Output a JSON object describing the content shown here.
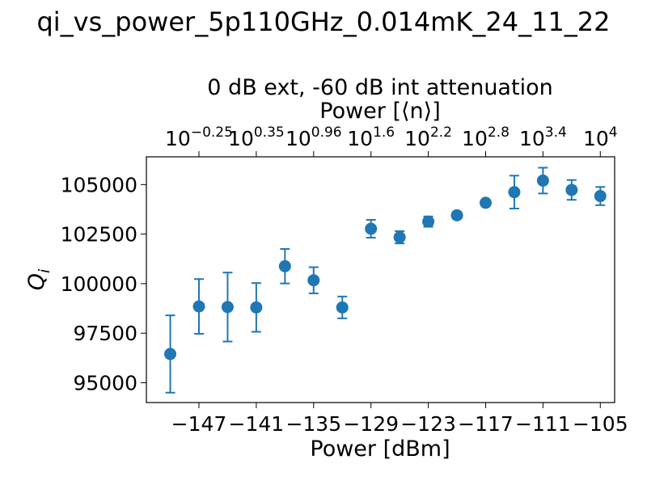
{
  "chart_data": {
    "type": "scatter",
    "title": "qi_vs_power_5p110GHz_0.014mK_24_11_22",
    "secondary_title": "0 dB ext, -60 dB int attenuation",
    "xlabel": "Power [dBm]",
    "ylabel": "Q_i",
    "top_xlabel": "Power [⟨n⟩]",
    "xlim": [
      -152.5,
      -103.5
    ],
    "ylim": [
      94000,
      106400
    ],
    "x_ticks": [
      -147,
      -141,
      -135,
      -129,
      -123,
      -117,
      -111,
      -105
    ],
    "y_ticks": [
      95000,
      97500,
      100000,
      102500,
      105000
    ],
    "top_ticks": [
      {
        "base": "10",
        "exp": "−0.25"
      },
      {
        "base": "10",
        "exp": "0.35"
      },
      {
        "base": "10",
        "exp": "0.96"
      },
      {
        "base": "10",
        "exp": "1.6"
      },
      {
        "base": "10",
        "exp": "2.2"
      },
      {
        "base": "10",
        "exp": "2.8"
      },
      {
        "base": "10",
        "exp": "3.4"
      },
      {
        "base": "10",
        "exp": "4"
      }
    ],
    "series": [
      {
        "color": "#1f77b4",
        "x": [
          -150,
          -147,
          -144,
          -141,
          -138,
          -135,
          -132,
          -129,
          -126,
          -123,
          -120,
          -117,
          -114,
          -111,
          -108,
          -105
        ],
        "y": [
          96450,
          98850,
          98820,
          98800,
          100880,
          100170,
          98800,
          102770,
          102340,
          103130,
          103450,
          104080,
          104620,
          105200,
          104730,
          104420
        ],
        "yerr": [
          1950,
          1380,
          1740,
          1230,
          870,
          660,
          550,
          450,
          310,
          260,
          170,
          140,
          830,
          650,
          500,
          460
        ]
      }
    ],
    "grid": false,
    "legend": "none"
  }
}
